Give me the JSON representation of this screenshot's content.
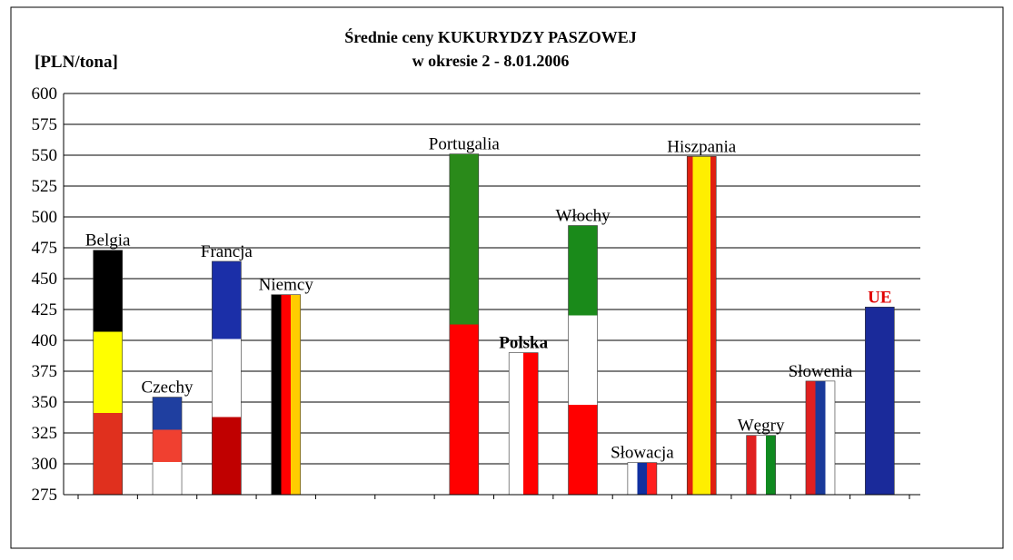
{
  "chart_data": {
    "type": "bar",
    "title": [
      "Średnie ceny KUKURYDZY PASZOWEJ",
      "w okresie 2 - 8.01.2006"
    ],
    "y_axis_label": "[PLN/tona]",
    "categories": [
      "Belgia",
      "Czechy",
      "Francja",
      "Niemcy",
      null,
      null,
      "Portugalia",
      "Polska",
      "Włochy",
      "Słowacja",
      "Hiszpania",
      "Węgry",
      "Słowenia",
      "UE"
    ],
    "values": [
      473,
      354,
      464,
      437,
      null,
      null,
      551,
      390,
      493,
      301,
      549,
      323,
      367,
      427
    ],
    "flags": [
      {
        "dir": "h",
        "colors": [
          "#000000",
          "#ffff00",
          "#e0301e"
        ]
      },
      {
        "dir": "h",
        "colors": [
          "#1f3fa0",
          "#f04030",
          "#ffffff"
        ]
      },
      {
        "dir": "h",
        "colors": [
          "#1b2fa8",
          "#ffffff",
          "#c00000"
        ]
      },
      {
        "dir": "v",
        "colors": [
          "#000000",
          "#ff0000",
          "#ffcc00"
        ]
      },
      null,
      null,
      {
        "dir": "h",
        "colors": [
          "#2a8a1a",
          "#ff0000"
        ]
      },
      {
        "dir": "v",
        "colors": [
          "#ffffff",
          "#ff0000"
        ]
      },
      {
        "dir": "h",
        "colors": [
          "#1a8a1a",
          "#ffffff",
          "#ff0000"
        ]
      },
      {
        "dir": "v",
        "colors": [
          "#ffffff",
          "#1030a0",
          "#ff2020"
        ]
      },
      {
        "dir": "v",
        "colors": [
          "#e02010",
          "#ffee00",
          "#ffee00",
          "#ffee00",
          "#e02010"
        ]
      },
      {
        "dir": "v",
        "colors": [
          "#e02020",
          "#ffffff",
          "#108a20"
        ]
      },
      {
        "dir": "v",
        "colors": [
          "#e02020",
          "#1a3a9a",
          "#ffffff"
        ]
      },
      {
        "dir": "h",
        "colors": [
          "#1a2a9a"
        ]
      }
    ],
    "label_styles": {
      "Polska": {
        "weight": "bold",
        "color": "#000000"
      },
      "UE": {
        "weight": "bold",
        "color": "#e00000"
      }
    },
    "ylim": [
      275,
      600
    ],
    "yticks": [
      275,
      300,
      325,
      350,
      375,
      400,
      425,
      450,
      475,
      500,
      525,
      550,
      575,
      600
    ],
    "grid": true
  }
}
